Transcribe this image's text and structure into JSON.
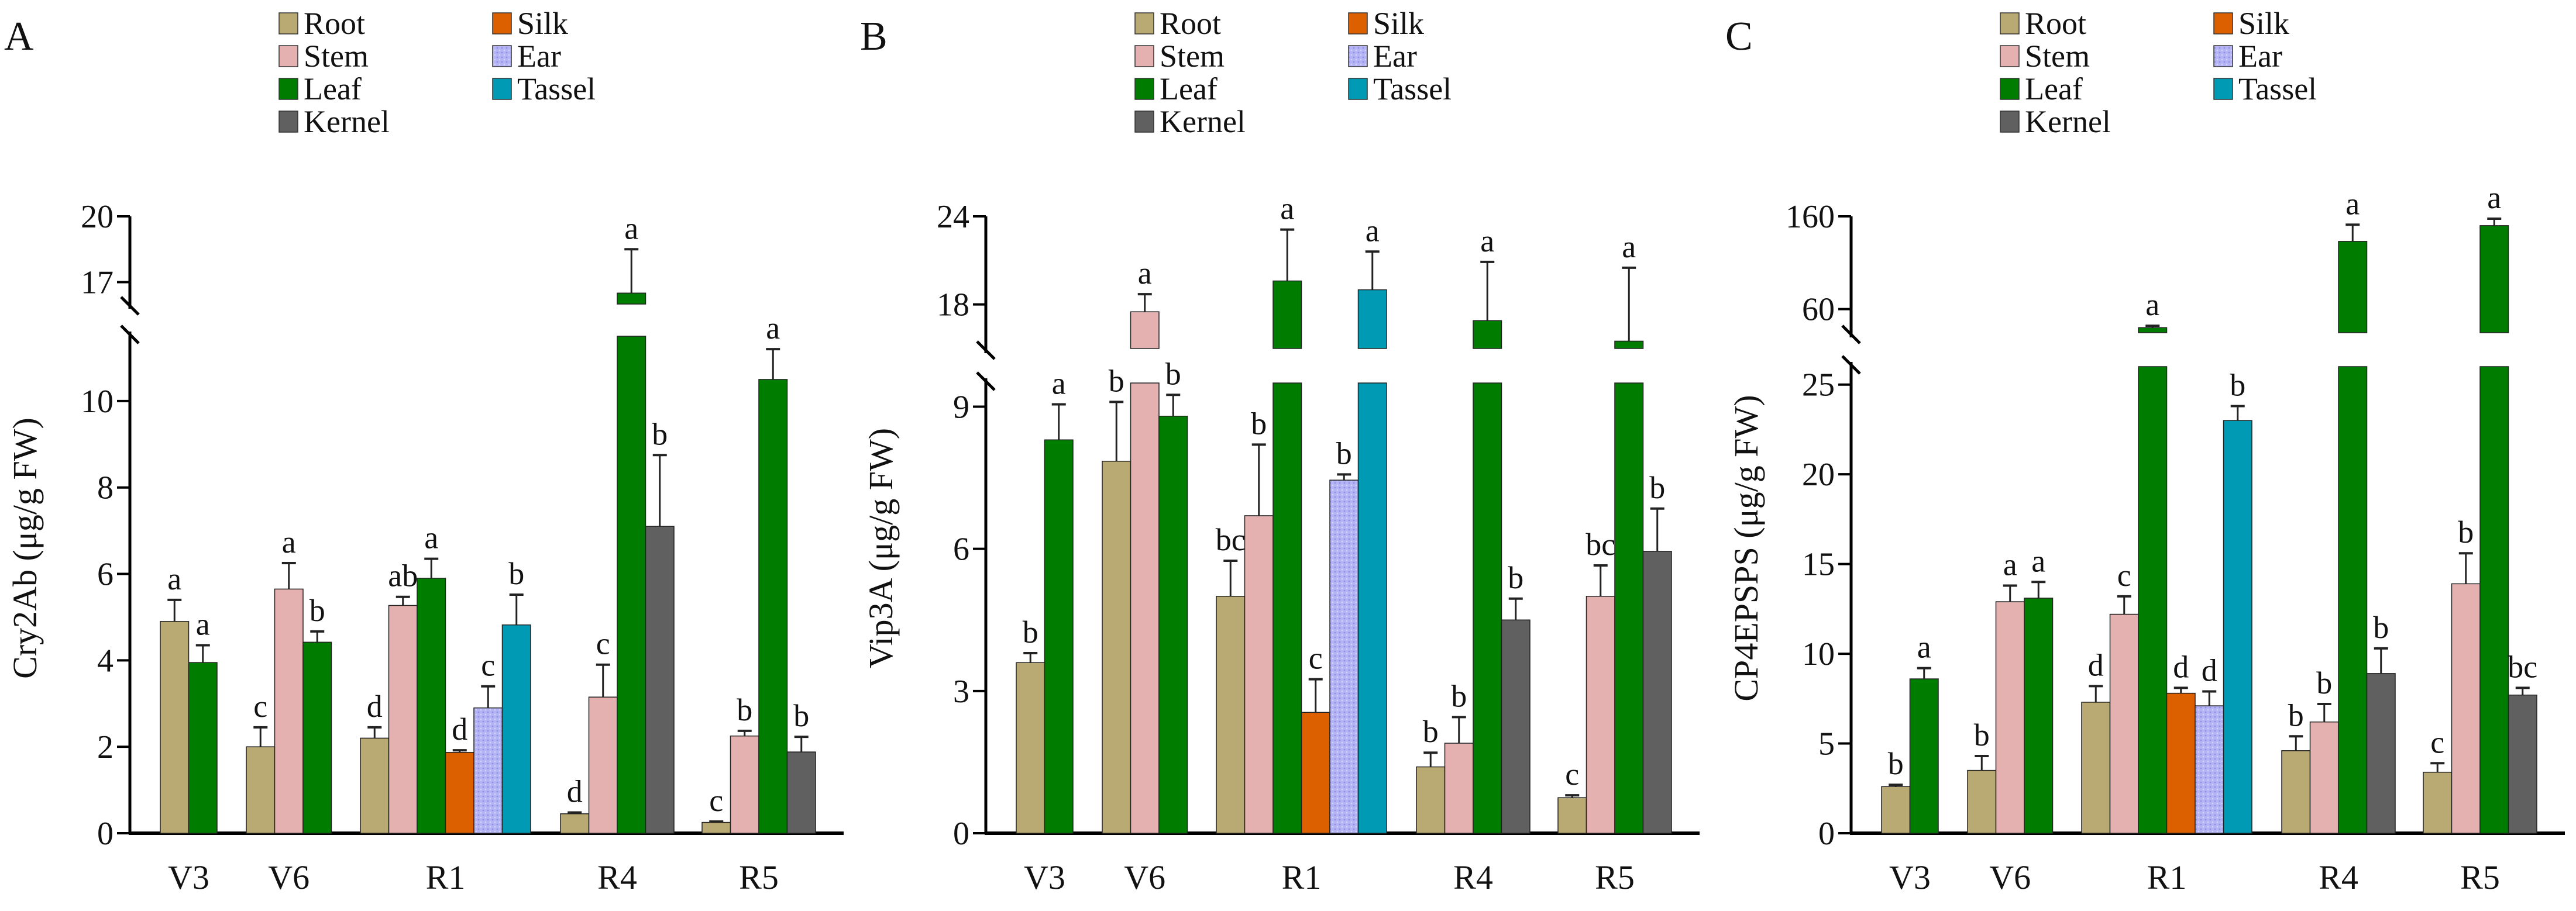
{
  "legend": {
    "items": [
      {
        "name": "Root",
        "color": "#b8aa72"
      },
      {
        "name": "Silk",
        "color": "#dc6000"
      },
      {
        "name": "Stem",
        "color": "#e4b0b0"
      },
      {
        "name": "Ear",
        "color": "#b4b4f4"
      },
      {
        "name": "Leaf",
        "color": "#007d00"
      },
      {
        "name": "Tassel",
        "color": "#009ab5"
      },
      {
        "name": "Kernel",
        "color": "#606060"
      }
    ]
  },
  "chart_data": [
    {
      "type": "bar",
      "panel_label": "A",
      "ylabel": "Cry2Ab (μg/g FW)",
      "xlabel": "",
      "ylim_lower": [
        0,
        11.5
      ],
      "ylim_upper": [
        16,
        20
      ],
      "yticks_lower": [
        0,
        2,
        4,
        6,
        8,
        10
      ],
      "yticks_upper": [
        17,
        20
      ],
      "categories": [
        "V3",
        "V6",
        "R1",
        "R4",
        "R5"
      ],
      "groups": [
        {
          "stage": "V3",
          "bars": [
            {
              "tissue": "Root",
              "value": 4.9,
              "error": 0.5,
              "letter": "a"
            },
            {
              "tissue": "Leaf",
              "value": 3.95,
              "error": 0.4,
              "letter": "a"
            }
          ]
        },
        {
          "stage": "V6",
          "bars": [
            {
              "tissue": "Root",
              "value": 2.0,
              "error": 0.45,
              "letter": "c"
            },
            {
              "tissue": "Stem",
              "value": 5.65,
              "error": 0.6,
              "letter": "a"
            },
            {
              "tissue": "Leaf",
              "value": 4.42,
              "error": 0.25,
              "letter": "b"
            }
          ]
        },
        {
          "stage": "R1",
          "bars": [
            {
              "tissue": "Root",
              "value": 2.2,
              "error": 0.25,
              "letter": "d"
            },
            {
              "tissue": "Stem",
              "value": 5.27,
              "error": 0.2,
              "letter": "ab"
            },
            {
              "tissue": "Leaf",
              "value": 5.9,
              "error": 0.45,
              "letter": "a"
            },
            {
              "tissue": "Silk",
              "value": 1.87,
              "error": 0.05,
              "letter": "d"
            },
            {
              "tissue": "Ear",
              "value": 2.9,
              "error": 0.5,
              "letter": "c"
            },
            {
              "tissue": "Tassel",
              "value": 4.82,
              "error": 0.7,
              "letter": "b"
            }
          ]
        },
        {
          "stage": "R4",
          "bars": [
            {
              "tissue": "Root",
              "value": 0.45,
              "error": 0.03,
              "letter": "d"
            },
            {
              "tissue": "Stem",
              "value": 3.15,
              "error": 0.75,
              "letter": "c"
            },
            {
              "tissue": "Leaf",
              "value": 16.5,
              "error": 2.0,
              "letter": "a"
            },
            {
              "tissue": "Kernel",
              "value": 7.1,
              "error": 1.65,
              "letter": "b"
            }
          ]
        },
        {
          "stage": "R5",
          "bars": [
            {
              "tissue": "Root",
              "value": 0.25,
              "error": 0.02,
              "letter": "c"
            },
            {
              "tissue": "Stem",
              "value": 2.25,
              "error": 0.12,
              "letter": "b"
            },
            {
              "tissue": "Leaf",
              "value": 10.5,
              "error": 0.7,
              "letter": "a"
            },
            {
              "tissue": "Kernel",
              "value": 1.88,
              "error": 0.35,
              "letter": "b"
            }
          ]
        }
      ]
    },
    {
      "type": "bar",
      "panel_label": "B",
      "ylabel": "Vip3A (μg/g FW)",
      "xlabel": "",
      "ylim_lower": [
        0,
        9.5
      ],
      "ylim_upper": [
        15,
        24
      ],
      "yticks_lower": [
        0,
        3,
        6,
        9
      ],
      "yticks_upper": [
        18,
        24
      ],
      "categories": [
        "V3",
        "V6",
        "R1",
        "R4",
        "R5"
      ],
      "groups": [
        {
          "stage": "V3",
          "bars": [
            {
              "tissue": "Root",
              "value": 3.6,
              "error": 0.2,
              "letter": "b"
            },
            {
              "tissue": "Leaf",
              "value": 8.3,
              "error": 0.75,
              "letter": "a"
            }
          ]
        },
        {
          "stage": "V6",
          "bars": [
            {
              "tissue": "Root",
              "value": 7.85,
              "error": 1.25,
              "letter": "b"
            },
            {
              "tissue": "Stem",
              "value": 17.5,
              "error": 1.2,
              "letter": "a"
            },
            {
              "tissue": "Leaf",
              "value": 8.8,
              "error": 0.45,
              "letter": "b"
            }
          ]
        },
        {
          "stage": "R1",
          "bars": [
            {
              "tissue": "Root",
              "value": 5.0,
              "error": 0.75,
              "letter": "bc"
            },
            {
              "tissue": "Stem",
              "value": 6.7,
              "error": 1.5,
              "letter": "b"
            },
            {
              "tissue": "Leaf",
              "value": 19.6,
              "error": 3.5,
              "letter": "a"
            },
            {
              "tissue": "Silk",
              "value": 2.55,
              "error": 0.7,
              "letter": "c"
            },
            {
              "tissue": "Ear",
              "value": 7.45,
              "error": 0.12,
              "letter": "b"
            },
            {
              "tissue": "Tassel",
              "value": 19.0,
              "error": 2.6,
              "letter": "a"
            }
          ]
        },
        {
          "stage": "R4",
          "bars": [
            {
              "tissue": "Root",
              "value": 1.4,
              "error": 0.3,
              "letter": "b"
            },
            {
              "tissue": "Stem",
              "value": 1.9,
              "error": 0.55,
              "letter": "b"
            },
            {
              "tissue": "Leaf",
              "value": 16.9,
              "error": 4.0,
              "letter": "a"
            },
            {
              "tissue": "Kernel",
              "value": 4.5,
              "error": 0.45,
              "letter": "b"
            }
          ]
        },
        {
          "stage": "R5",
          "bars": [
            {
              "tissue": "Root",
              "value": 0.75,
              "error": 0.05,
              "letter": "c"
            },
            {
              "tissue": "Stem",
              "value": 5.0,
              "error": 0.65,
              "letter": "bc"
            },
            {
              "tissue": "Leaf",
              "value": 15.5,
              "error": 5.0,
              "letter": "a"
            },
            {
              "tissue": "Kernel",
              "value": 5.95,
              "error": 0.9,
              "letter": "b"
            }
          ]
        }
      ]
    },
    {
      "type": "bar",
      "panel_label": "C",
      "ylabel": "CP4EPSPS (μg/g FW)",
      "xlabel": "",
      "ylim_lower": [
        0,
        26
      ],
      "ylim_upper": [
        34.5,
        160
      ],
      "yticks_lower": [
        0,
        5,
        10,
        15,
        20,
        25
      ],
      "yticks_upper": [
        60,
        160
      ],
      "categories": [
        "V3",
        "V6",
        "R1",
        "R4",
        "R5"
      ],
      "groups": [
        {
          "stage": "V3",
          "bars": [
            {
              "tissue": "Root",
              "value": 2.6,
              "error": 0.1,
              "letter": "b"
            },
            {
              "tissue": "Leaf",
              "value": 8.6,
              "error": 0.6,
              "letter": "a"
            }
          ]
        },
        {
          "stage": "V6",
          "bars": [
            {
              "tissue": "Root",
              "value": 3.5,
              "error": 0.8,
              "letter": "b"
            },
            {
              "tissue": "Stem",
              "value": 12.9,
              "error": 0.9,
              "letter": "a"
            },
            {
              "tissue": "Leaf",
              "value": 13.1,
              "error": 0.9,
              "letter": "a"
            }
          ]
        },
        {
          "stage": "R1",
          "bars": [
            {
              "tissue": "Root",
              "value": 7.3,
              "error": 0.9,
              "letter": "d"
            },
            {
              "tissue": "Stem",
              "value": 12.2,
              "error": 1.0,
              "letter": "c"
            },
            {
              "tissue": "Leaf",
              "value": 40,
              "error": 2,
              "letter": "a"
            },
            {
              "tissue": "Silk",
              "value": 7.8,
              "error": 0.3,
              "letter": "d"
            },
            {
              "tissue": "Ear",
              "value": 7.1,
              "error": 0.8,
              "letter": "d"
            },
            {
              "tissue": "Tassel",
              "value": 23.0,
              "error": 0.8,
              "letter": "b"
            }
          ]
        },
        {
          "stage": "R4",
          "bars": [
            {
              "tissue": "Root",
              "value": 4.6,
              "error": 0.8,
              "letter": "b"
            },
            {
              "tissue": "Stem",
              "value": 6.2,
              "error": 1.0,
              "letter": "b"
            },
            {
              "tissue": "Leaf",
              "value": 133,
              "error": 18,
              "letter": "a"
            },
            {
              "tissue": "Kernel",
              "value": 8.9,
              "error": 1.4,
              "letter": "b"
            }
          ]
        },
        {
          "stage": "R5",
          "bars": [
            {
              "tissue": "Root",
              "value": 3.4,
              "error": 0.5,
              "letter": "c"
            },
            {
              "tissue": "Stem",
              "value": 13.9,
              "error": 1.7,
              "letter": "b"
            },
            {
              "tissue": "Leaf",
              "value": 150,
              "error": 7.5,
              "letter": "a"
            },
            {
              "tissue": "Kernel",
              "value": 7.7,
              "error": 0.4,
              "letter": "bc"
            }
          ]
        }
      ]
    }
  ]
}
